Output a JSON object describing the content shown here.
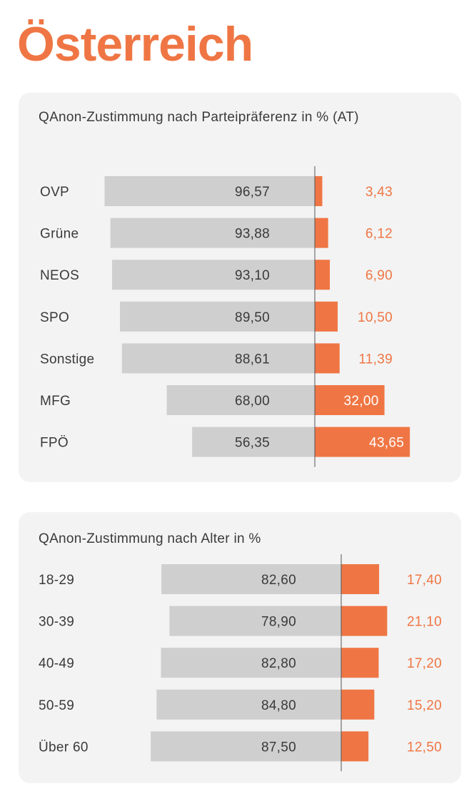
{
  "page_title": "Österreich",
  "colors": {
    "accent": "#ef7644",
    "gray_bar": "#cfcfcf",
    "panel_bg": "#f3f3f3",
    "text": "#3a3a3a",
    "white": "#ffffff"
  },
  "chart_data": [
    {
      "type": "bar",
      "title": "QAnon-Zustimmung nach Parteipräferenz in % (AT)",
      "categories": [
        "OVP",
        "Grüne",
        "NEOS",
        "SPO",
        "Sonstige",
        "MFG",
        "FPÖ"
      ],
      "series": [
        {
          "values": [
            96.57,
            93.88,
            93.1,
            89.5,
            88.61,
            68.0,
            56.35
          ],
          "labels": [
            "96,57",
            "93,88",
            "93,10",
            "89,50",
            "88,61",
            "68,00",
            "56,35"
          ]
        },
        {
          "values": [
            3.43,
            6.12,
            6.9,
            10.5,
            11.39,
            32.0,
            43.65
          ],
          "labels": [
            "3,43",
            "6,12",
            "6,90",
            "10,50",
            "11,39",
            "32,00",
            "43,65"
          ]
        }
      ],
      "grid": false
    },
    {
      "type": "bar",
      "title": "QAnon-Zustimmung nach Alter in %",
      "categories": [
        "18-29",
        "30-39",
        "40-49",
        "50-59",
        "Über 60"
      ],
      "series": [
        {
          "values": [
            82.6,
            78.9,
            82.8,
            84.8,
            87.5
          ],
          "labels": [
            "82,60",
            "78,90",
            "82,80",
            "84,80",
            "87,50"
          ]
        },
        {
          "values": [
            17.4,
            21.1,
            17.2,
            15.2,
            12.5
          ],
          "labels": [
            "17,40",
            "21,10",
            "17,20",
            "15,20",
            "12,50"
          ]
        }
      ],
      "grid": false
    }
  ]
}
